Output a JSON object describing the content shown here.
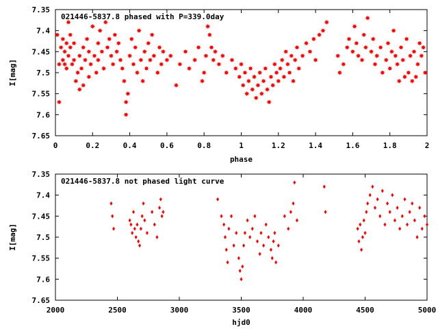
{
  "chart_data": [
    {
      "type": "scatter",
      "title": "021446-5837.8 phased with P=339.0day",
      "xlabel": "phase",
      "ylabel": "I[mag]",
      "xlim": [
        0,
        2
      ],
      "ylim": [
        7.65,
        7.35
      ],
      "y_inverted": true,
      "grid": false,
      "color": "#ff0000",
      "xticks": [
        "0",
        "0.2",
        "0.4",
        "0.6",
        "0.8",
        "1",
        "1.2",
        "1.4",
        "1.6",
        "1.8",
        "2"
      ],
      "yticks": [
        "7.35",
        "7.4",
        "7.45",
        "7.5",
        "7.55",
        "7.6",
        "7.65"
      ],
      "x": [
        0.01,
        0.02,
        0.02,
        0.03,
        0.04,
        0.04,
        0.05,
        0.05,
        0.06,
        0.06,
        0.07,
        0.07,
        0.08,
        0.08,
        0.09,
        0.1,
        0.1,
        0.11,
        0.12,
        0.13,
        0.13,
        0.14,
        0.15,
        0.15,
        0.16,
        0.17,
        0.18,
        0.18,
        0.19,
        0.2,
        0.21,
        0.22,
        0.23,
        0.23,
        0.24,
        0.25,
        0.26,
        0.27,
        0.28,
        0.29,
        0.3,
        0.31,
        0.32,
        0.33,
        0.34,
        0.35,
        0.36,
        0.37,
        0.38,
        0.38,
        0.39,
        0.4,
        0.41,
        0.42,
        0.43,
        0.44,
        0.45,
        0.46,
        0.47,
        0.48,
        0.49,
        0.5,
        0.51,
        0.52,
        0.53,
        0.55,
        0.56,
        0.57,
        0.58,
        0.6,
        0.62,
        0.65,
        0.67,
        0.7,
        0.72,
        0.75,
        0.77,
        0.79,
        0.8,
        0.81,
        0.82,
        0.83,
        0.84,
        0.85,
        0.86,
        0.88,
        0.9,
        0.92,
        0.95,
        0.97,
        0.99,
        1.0,
        1.01,
        1.02,
        1.03,
        1.04,
        1.05,
        1.06,
        1.07,
        1.08,
        1.09,
        1.1,
        1.11,
        1.12,
        1.13,
        1.14,
        1.15,
        1.16,
        1.17,
        1.18,
        1.19,
        1.2,
        1.21,
        1.22,
        1.23,
        1.24,
        1.25,
        1.26,
        1.27,
        1.28,
        1.29,
        1.3,
        1.31,
        1.33,
        1.35,
        1.37,
        1.39,
        1.4,
        1.42,
        1.44,
        1.46,
        1.52,
        1.53,
        1.55,
        1.57,
        1.58,
        1.6,
        1.61,
        1.62,
        1.63,
        1.65,
        1.66,
        1.67,
        1.68,
        1.7,
        1.71,
        1.72,
        1.73,
        1.75,
        1.76,
        1.78,
        1.79,
        1.8,
        1.81,
        1.82,
        1.83,
        1.84,
        1.85,
        1.86,
        1.87,
        1.88,
        1.89,
        1.9,
        1.91,
        1.92,
        1.93,
        1.94,
        1.95,
        1.96,
        1.97,
        1.98,
        1.99
      ],
      "y": [
        7.41,
        7.57,
        7.48,
        7.44,
        7.47,
        7.42,
        7.45,
        7.48,
        7.43,
        7.49,
        7.46,
        7.38,
        7.41,
        7.44,
        7.48,
        7.47,
        7.43,
        7.52,
        7.5,
        7.46,
        7.54,
        7.49,
        7.44,
        7.53,
        7.47,
        7.42,
        7.51,
        7.45,
        7.48,
        7.39,
        7.46,
        7.5,
        7.43,
        7.47,
        7.4,
        7.45,
        7.49,
        7.38,
        7.44,
        7.42,
        7.46,
        7.48,
        7.41,
        7.45,
        7.43,
        7.47,
        7.49,
        7.52,
        7.57,
        7.6,
        7.55,
        7.46,
        7.42,
        7.48,
        7.44,
        7.5,
        7.4,
        7.47,
        7.52,
        7.45,
        7.49,
        7.43,
        7.47,
        7.41,
        7.46,
        7.5,
        7.44,
        7.48,
        7.45,
        7.47,
        7.46,
        7.53,
        7.48,
        7.45,
        7.49,
        7.47,
        7.44,
        7.52,
        7.5,
        7.46,
        7.39,
        7.41,
        7.44,
        7.47,
        7.45,
        7.48,
        7.46,
        7.5,
        7.47,
        7.49,
        7.51,
        7.48,
        7.53,
        7.5,
        7.55,
        7.52,
        7.49,
        7.54,
        7.51,
        7.56,
        7.53,
        7.5,
        7.55,
        7.52,
        7.49,
        7.54,
        7.57,
        7.51,
        7.53,
        7.48,
        7.5,
        7.52,
        7.49,
        7.47,
        7.51,
        7.45,
        7.48,
        7.5,
        7.46,
        7.52,
        7.47,
        7.44,
        7.49,
        7.46,
        7.43,
        7.45,
        7.42,
        7.47,
        7.41,
        7.4,
        7.38,
        7.46,
        7.5,
        7.48,
        7.44,
        7.42,
        7.45,
        7.39,
        7.43,
        7.46,
        7.47,
        7.41,
        7.44,
        7.37,
        7.45,
        7.42,
        7.48,
        7.46,
        7.44,
        7.5,
        7.47,
        7.43,
        7.49,
        7.45,
        7.4,
        7.46,
        7.48,
        7.52,
        7.44,
        7.47,
        7.51,
        7.42,
        7.5,
        7.46,
        7.52,
        7.45,
        7.51,
        7.48,
        7.43,
        7.46,
        7.44,
        7.5
      ]
    },
    {
      "type": "scatter",
      "title": "021446-5837.8 not phased light curve",
      "xlabel": "hjd0",
      "ylabel": "I[mag]",
      "xlim": [
        2000,
        5000
      ],
      "ylim": [
        7.65,
        7.35
      ],
      "y_inverted": true,
      "grid": false,
      "color": "#ff0000",
      "xticks": [
        "2000",
        "2500",
        "3000",
        "3500",
        "4000",
        "4500",
        "5000"
      ],
      "yticks": [
        "7.35",
        "7.4",
        "7.45",
        "7.5",
        "7.55",
        "7.6",
        "7.65"
      ],
      "x": [
        2450,
        2460,
        2470,
        2600,
        2610,
        2620,
        2630,
        2640,
        2650,
        2660,
        2670,
        2680,
        2690,
        2700,
        2710,
        2720,
        2740,
        2780,
        2800,
        2820,
        2840,
        2850,
        2860,
        2870,
        3310,
        3340,
        3360,
        3370,
        3380,
        3390,
        3400,
        3420,
        3440,
        3460,
        3480,
        3490,
        3500,
        3510,
        3520,
        3530,
        3550,
        3570,
        3590,
        3610,
        3630,
        3650,
        3660,
        3680,
        3700,
        3720,
        3740,
        3750,
        3760,
        3770,
        3780,
        3800,
        3850,
        3880,
        3900,
        3920,
        3930,
        3950,
        4170,
        4180,
        4440,
        4450,
        4460,
        4470,
        4480,
        4490,
        4500,
        4510,
        4520,
        4540,
        4560,
        4580,
        4600,
        4620,
        4640,
        4660,
        4680,
        4700,
        4720,
        4740,
        4760,
        4780,
        4800,
        4820,
        4840,
        4860,
        4880,
        4900,
        4920,
        4940,
        4960,
        4980,
        5000
      ],
      "y": [
        7.42,
        7.45,
        7.48,
        7.46,
        7.47,
        7.49,
        7.44,
        7.48,
        7.5,
        7.47,
        7.51,
        7.52,
        7.48,
        7.45,
        7.42,
        7.46,
        7.49,
        7.44,
        7.47,
        7.5,
        7.43,
        7.41,
        7.45,
        7.44,
        7.41,
        7.45,
        7.47,
        7.5,
        7.53,
        7.56,
        7.48,
        7.45,
        7.52,
        7.49,
        7.55,
        7.58,
        7.6,
        7.57,
        7.52,
        7.49,
        7.46,
        7.5,
        7.48,
        7.45,
        7.51,
        7.54,
        7.49,
        7.52,
        7.47,
        7.5,
        7.53,
        7.55,
        7.51,
        7.49,
        7.56,
        7.52,
        7.45,
        7.48,
        7.44,
        7.42,
        7.37,
        7.46,
        7.38,
        7.44,
        7.48,
        7.51,
        7.47,
        7.53,
        7.5,
        7.46,
        7.49,
        7.44,
        7.42,
        7.4,
        7.38,
        7.43,
        7.41,
        7.45,
        7.39,
        7.47,
        7.42,
        7.44,
        7.4,
        7.46,
        7.43,
        7.48,
        7.45,
        7.41,
        7.47,
        7.44,
        7.42,
        7.46,
        7.5,
        7.43,
        7.48,
        7.45,
        7.47
      ]
    }
  ]
}
